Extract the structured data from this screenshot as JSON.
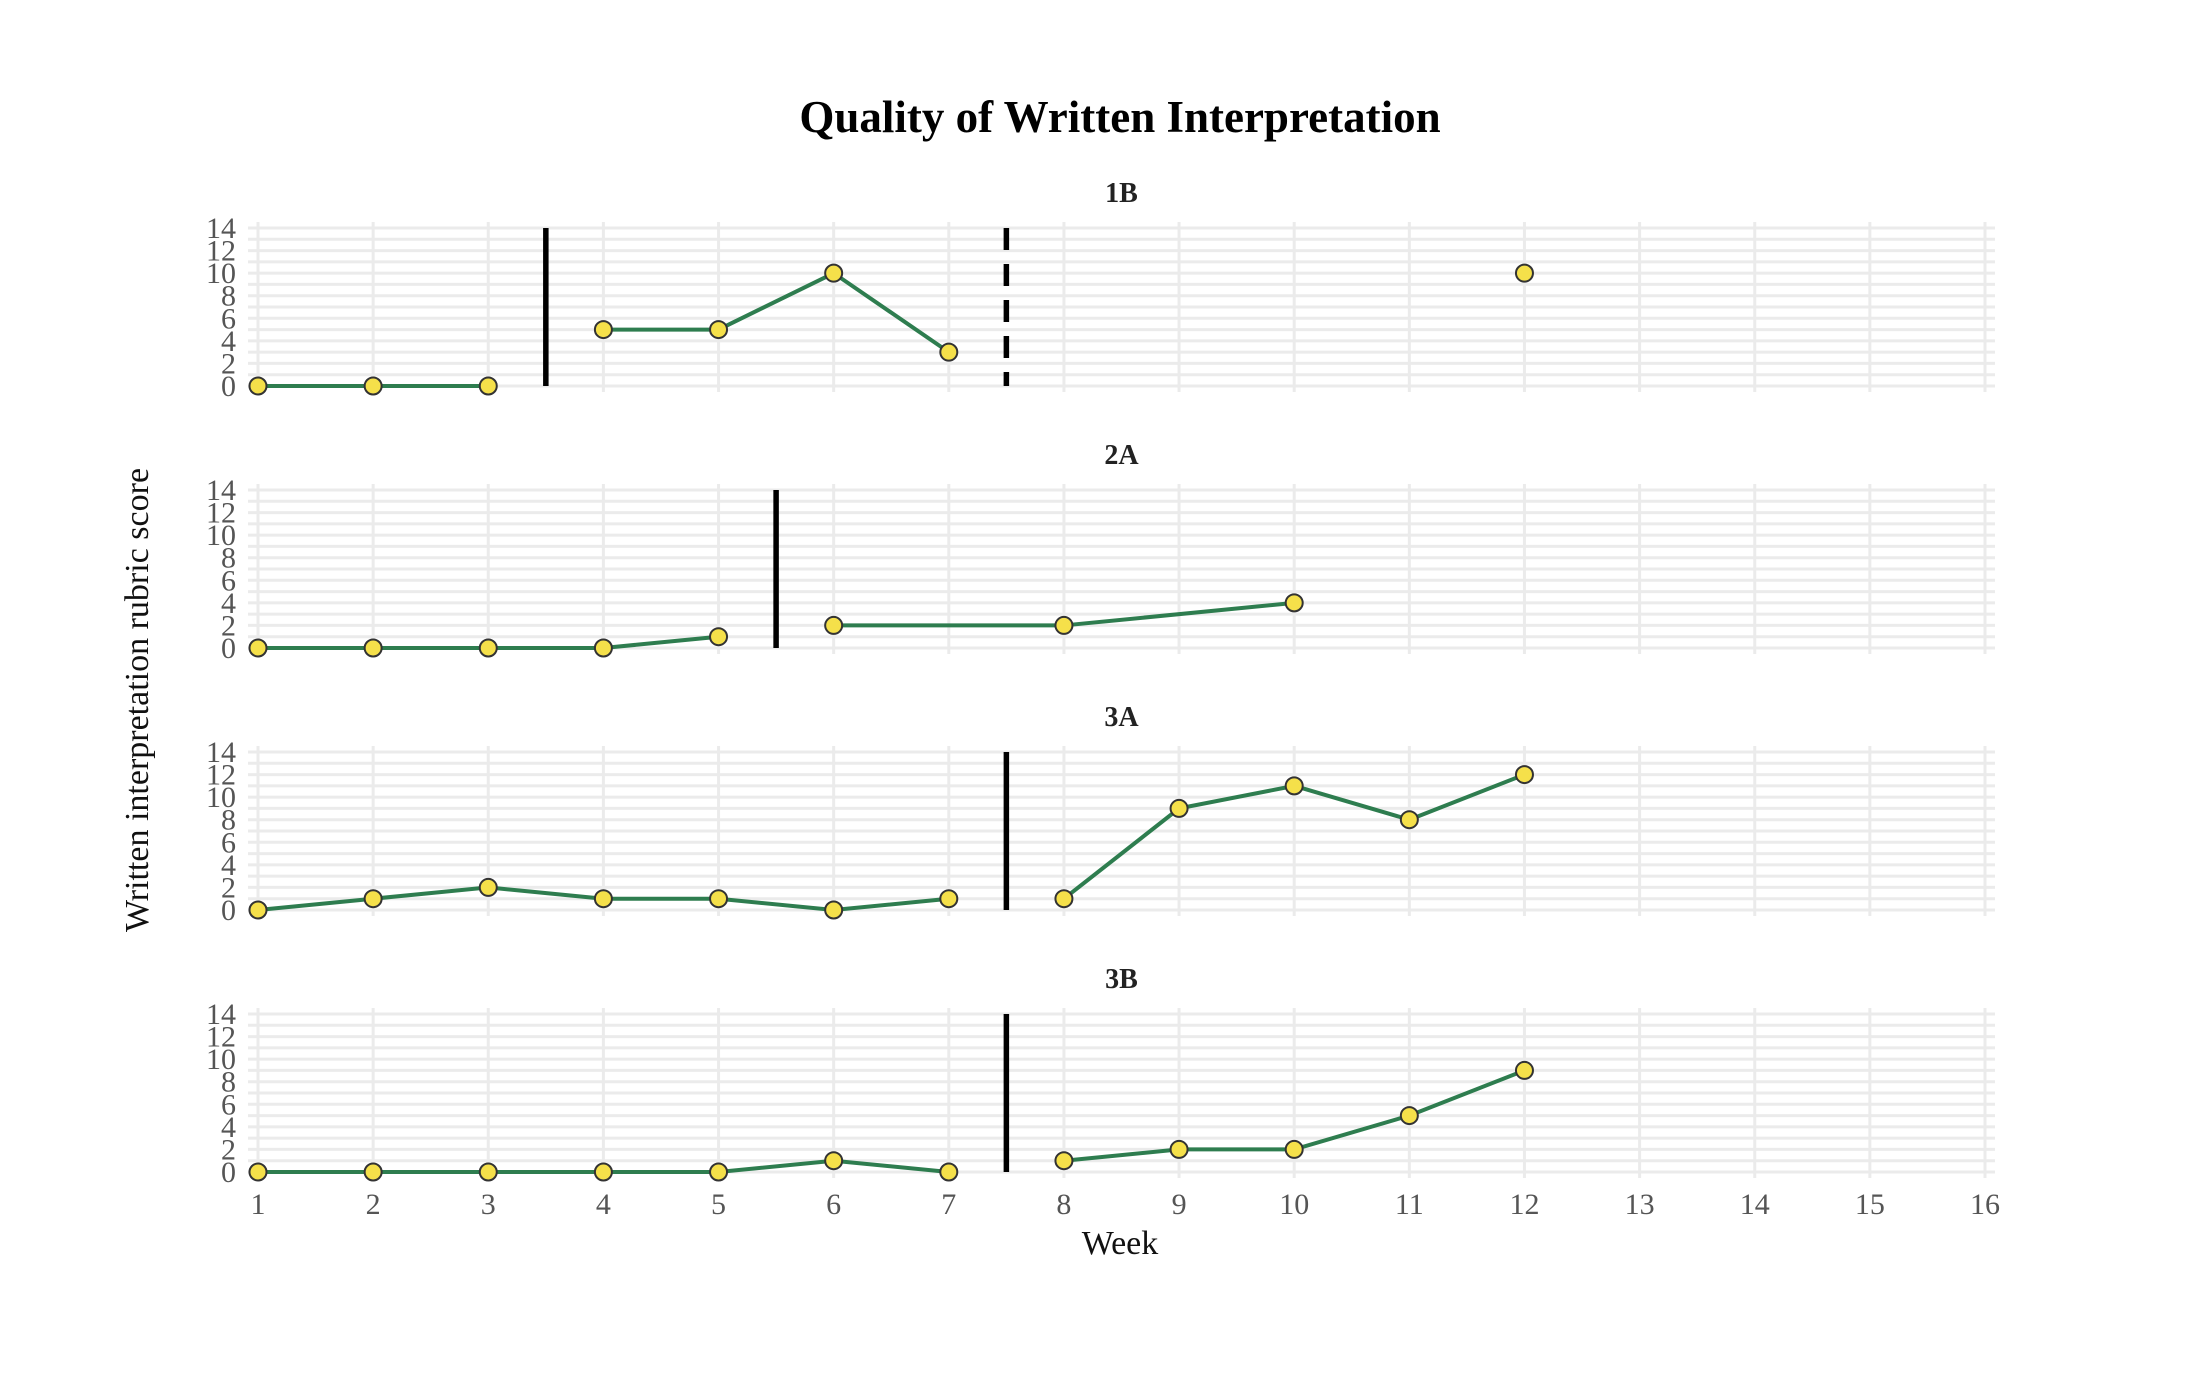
{
  "chart_data": {
    "type": "line",
    "title": "Quality of Written Interpretation",
    "xlabel": "Week",
    "ylabel": "Written interpretation rubric score",
    "xlim": [
      1,
      16
    ],
    "ylim": [
      0,
      14
    ],
    "x_ticks": [
      1,
      2,
      3,
      4,
      5,
      6,
      7,
      8,
      9,
      10,
      11,
      12,
      13,
      14,
      15,
      16
    ],
    "y_ticks": [
      0,
      2,
      4,
      6,
      8,
      10,
      12,
      14
    ],
    "grid": true,
    "colors": {
      "line": "#2e7d4f",
      "point_fill": "#f5e04a",
      "point_stroke": "#333333",
      "phase_line": "#000000"
    },
    "panels": [
      {
        "label": "1B",
        "segments": [
          [
            {
              "x": 1,
              "y": 0
            },
            {
              "x": 2,
              "y": 0
            },
            {
              "x": 3,
              "y": 0
            }
          ],
          [
            {
              "x": 4,
              "y": 5
            },
            {
              "x": 5,
              "y": 5
            },
            {
              "x": 6,
              "y": 10
            },
            {
              "x": 7,
              "y": 3
            }
          ],
          [
            {
              "x": 12,
              "y": 10
            }
          ]
        ],
        "phase_lines": [
          {
            "x": 3.5,
            "style": "solid"
          },
          {
            "x": 7.5,
            "style": "dashed"
          }
        ]
      },
      {
        "label": "2A",
        "segments": [
          [
            {
              "x": 1,
              "y": 0
            },
            {
              "x": 2,
              "y": 0
            },
            {
              "x": 3,
              "y": 0
            },
            {
              "x": 4,
              "y": 0
            },
            {
              "x": 5,
              "y": 1
            }
          ],
          [
            {
              "x": 6,
              "y": 2
            },
            {
              "x": 8,
              "y": 2
            },
            {
              "x": 10,
              "y": 4
            }
          ]
        ],
        "phase_lines": [
          {
            "x": 5.5,
            "style": "solid"
          }
        ]
      },
      {
        "label": "3A",
        "segments": [
          [
            {
              "x": 1,
              "y": 0
            },
            {
              "x": 2,
              "y": 1
            },
            {
              "x": 3,
              "y": 2
            },
            {
              "x": 4,
              "y": 1
            },
            {
              "x": 5,
              "y": 1
            },
            {
              "x": 6,
              "y": 0
            },
            {
              "x": 7,
              "y": 1
            }
          ],
          [
            {
              "x": 8,
              "y": 1
            },
            {
              "x": 9,
              "y": 9
            },
            {
              "x": 10,
              "y": 11
            },
            {
              "x": 11,
              "y": 8
            },
            {
              "x": 12,
              "y": 12
            }
          ]
        ],
        "phase_lines": [
          {
            "x": 7.5,
            "style": "solid"
          }
        ]
      },
      {
        "label": "3B",
        "segments": [
          [
            {
              "x": 1,
              "y": 0
            },
            {
              "x": 2,
              "y": 0
            },
            {
              "x": 3,
              "y": 0
            },
            {
              "x": 4,
              "y": 0
            },
            {
              "x": 5,
              "y": 0
            },
            {
              "x": 6,
              "y": 1
            },
            {
              "x": 7,
              "y": 0
            }
          ],
          [
            {
              "x": 8,
              "y": 1
            },
            {
              "x": 9,
              "y": 2
            },
            {
              "x": 10,
              "y": 2
            },
            {
              "x": 11,
              "y": 5
            },
            {
              "x": 12,
              "y": 9
            }
          ]
        ],
        "phase_lines": [
          {
            "x": 7.5,
            "style": "solid"
          }
        ]
      }
    ]
  }
}
